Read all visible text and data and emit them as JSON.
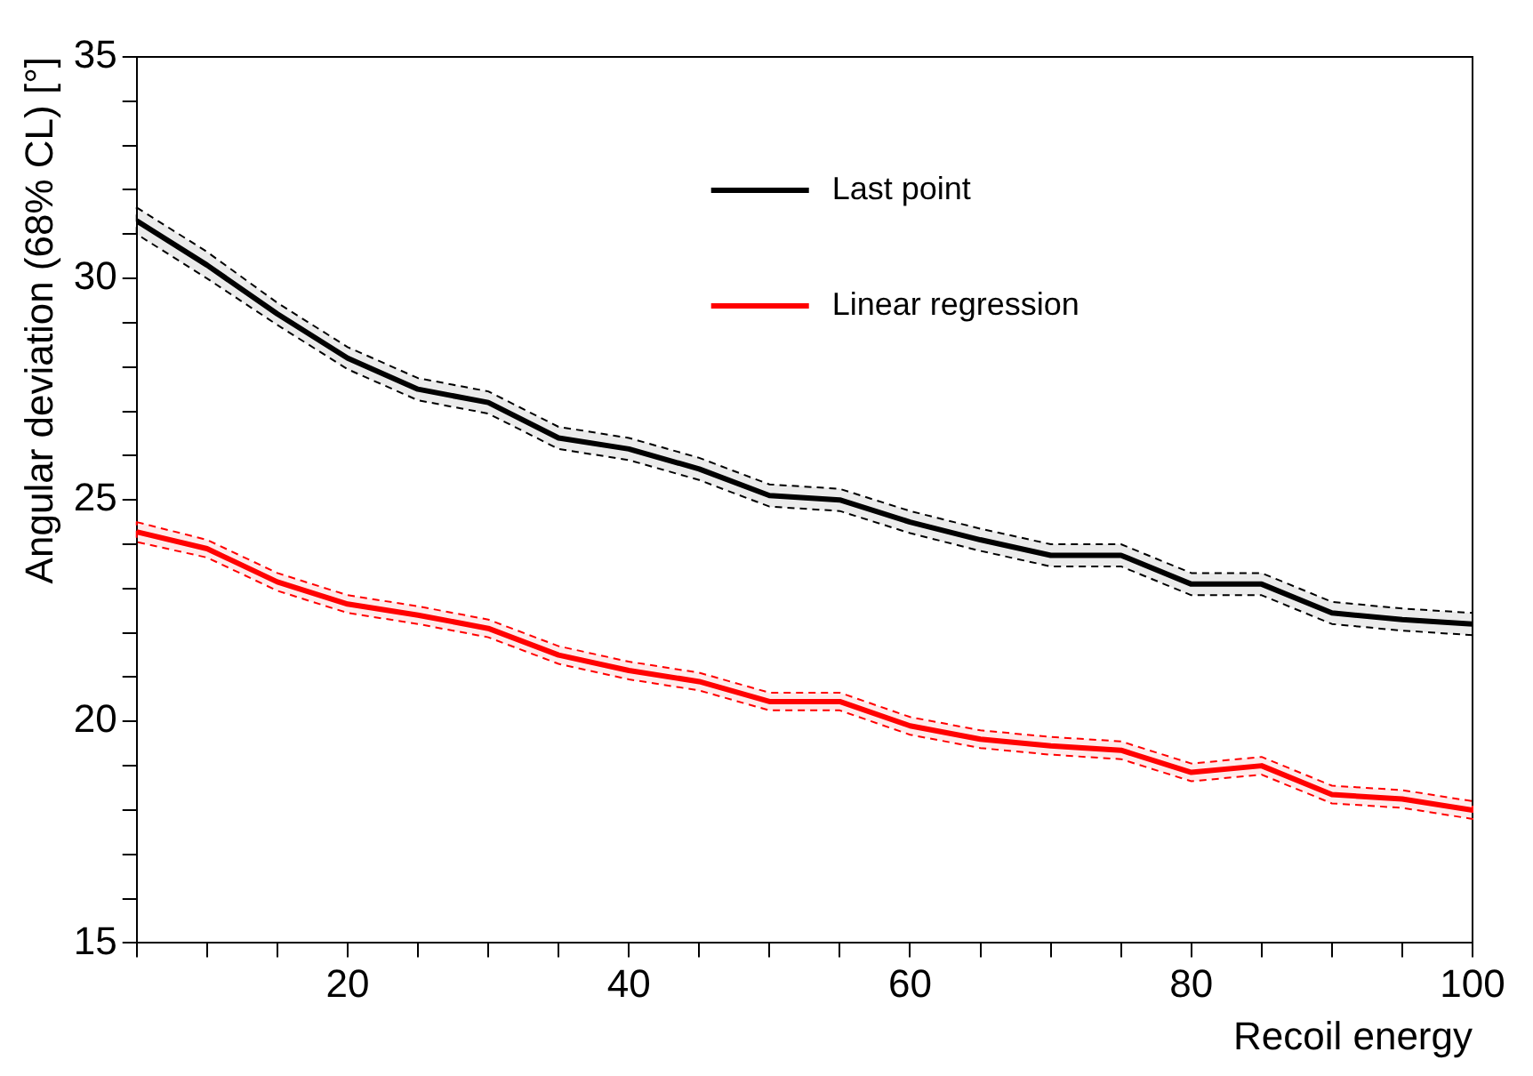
{
  "chart_data": {
    "type": "line",
    "xlabel": "Recoil energy",
    "ylabel": "Angular deviation (68% CL) [°]",
    "x": [
      5,
      10,
      15,
      20,
      25,
      30,
      35,
      40,
      45,
      50,
      55,
      60,
      65,
      70,
      75,
      80,
      85,
      90,
      95,
      100
    ],
    "xlim": [
      5,
      100
    ],
    "xticks": [
      {
        "value": 5,
        "label": null
      },
      {
        "value": 10,
        "label": null
      },
      {
        "value": 15,
        "label": null
      },
      20,
      {
        "value": 25,
        "label": null
      },
      {
        "value": 30,
        "label": null
      },
      {
        "value": 35,
        "label": null
      },
      40,
      {
        "value": 45,
        "label": null
      },
      {
        "value": 50,
        "label": null
      },
      {
        "value": 55,
        "label": null
      },
      60,
      {
        "value": 65,
        "label": null
      },
      {
        "value": 70,
        "label": null
      },
      {
        "value": 75,
        "label": null
      },
      80,
      {
        "value": 85,
        "label": null
      },
      {
        "value": 90,
        "label": null
      },
      {
        "value": 95,
        "label": null
      },
      100
    ],
    "ylim": [
      15,
      35
    ],
    "yticks": [
      15,
      {
        "value": 16,
        "label": null
      },
      {
        "value": 17,
        "label": null
      },
      {
        "value": 18,
        "label": null
      },
      {
        "value": 19,
        "label": null
      },
      20,
      {
        "value": 21,
        "label": null
      },
      {
        "value": 22,
        "label": null
      },
      {
        "value": 23,
        "label": null
      },
      {
        "value": 24,
        "label": null
      },
      25,
      {
        "value": 26,
        "label": null
      },
      {
        "value": 27,
        "label": null
      },
      {
        "value": 28,
        "label": null
      },
      {
        "value": 29,
        "label": null
      },
      30,
      {
        "value": 31,
        "label": null
      },
      {
        "value": 32,
        "label": null
      },
      {
        "value": 33,
        "label": null
      },
      {
        "value": 34,
        "label": null
      },
      35
    ],
    "legend": "top right",
    "marker": "none",
    "line_style": "solid",
    "grid": false,
    "series": [
      {
        "name": "Last point",
        "color": "#000000",
        "values": [
          31.3,
          30.3,
          29.2,
          28.2,
          27.5,
          27.2,
          26.4,
          26.15,
          25.7,
          25.1,
          25.0,
          24.5,
          24.1,
          23.75,
          23.75,
          23.1,
          23.1,
          22.45,
          22.3,
          22.2
        ],
        "lower": [
          31.0,
          30.0,
          28.95,
          27.95,
          27.25,
          26.95,
          26.15,
          25.9,
          25.45,
          24.85,
          24.75,
          24.25,
          23.85,
          23.5,
          23.5,
          22.85,
          22.85,
          22.2,
          22.05,
          21.95
        ],
        "upper": [
          31.6,
          30.6,
          29.45,
          28.45,
          27.75,
          27.45,
          26.65,
          26.4,
          25.95,
          25.35,
          25.25,
          24.75,
          24.35,
          24.0,
          24.0,
          23.35,
          23.35,
          22.7,
          22.55,
          22.45
        ]
      },
      {
        "name": "Linear regression",
        "color": "#ff0000",
        "values": [
          24.28,
          23.9,
          23.15,
          22.65,
          22.4,
          22.1,
          21.5,
          21.15,
          20.9,
          20.45,
          20.45,
          19.9,
          19.6,
          19.45,
          19.35,
          18.85,
          19.0,
          18.35,
          18.25,
          18.0
        ],
        "lower": [
          24.05,
          23.7,
          22.95,
          22.45,
          22.2,
          21.9,
          21.3,
          20.95,
          20.7,
          20.25,
          20.25,
          19.7,
          19.4,
          19.25,
          19.15,
          18.65,
          18.8,
          18.15,
          18.05,
          17.8
        ],
        "upper": [
          24.5,
          24.1,
          23.35,
          22.85,
          22.6,
          22.3,
          21.7,
          21.35,
          21.1,
          20.65,
          20.65,
          20.1,
          19.8,
          19.65,
          19.55,
          19.05,
          19.2,
          18.55,
          18.45,
          18.2
        ]
      }
    ]
  }
}
